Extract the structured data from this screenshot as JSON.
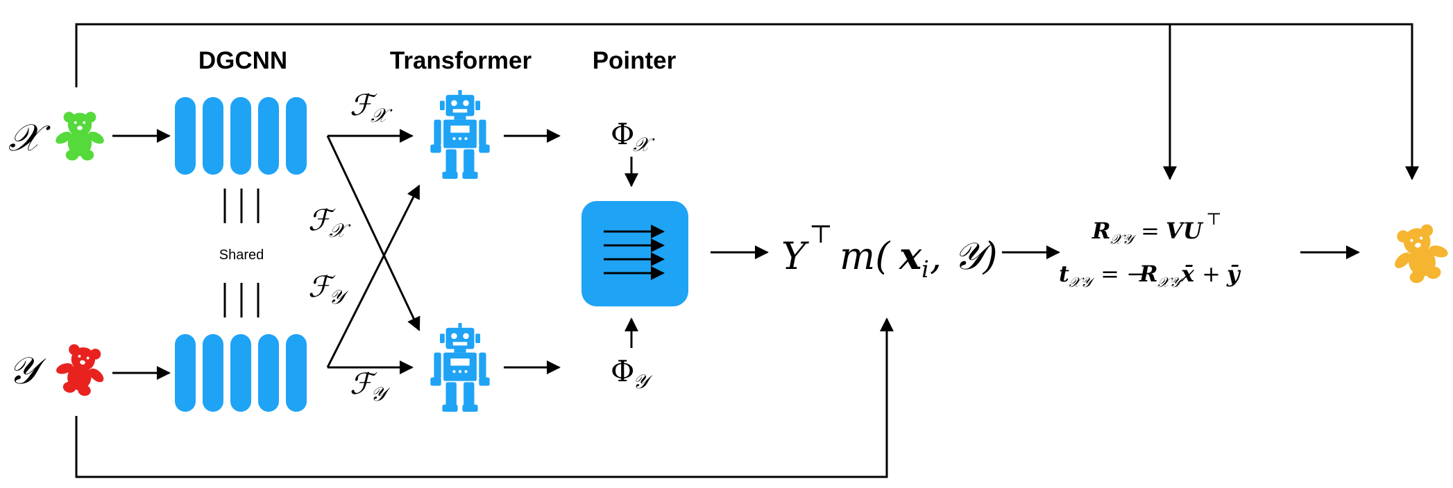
{
  "headers": {
    "dgcnn": "DGCNN",
    "transformer": "Transformer",
    "pointer": "Pointer"
  },
  "inputs": {
    "x_symbol": "𝒳",
    "y_symbol": "𝒴"
  },
  "shared_label": "Shared",
  "features": {
    "fx_top": "ℱ",
    "fx_top_sub": "𝒳",
    "fx_cross": "ℱ",
    "fx_cross_sub": "𝒳",
    "fy_cross": "ℱ",
    "fy_cross_sub": "𝒴",
    "fy_bottom": "ℱ",
    "fy_bottom_sub": "𝒴"
  },
  "embeddings": {
    "phi_x": "Φ",
    "phi_x_sub": "𝒳",
    "phi_y": "Φ",
    "phi_y_sub": "𝒴"
  },
  "soft_map": {
    "Y": "Y",
    "top": "⊤",
    "rest": "m(",
    "x": "x",
    "i": "i",
    "tail": ", 𝒴)"
  },
  "svd": {
    "line1_R": "R",
    "line1_sub": "𝒳𝒴",
    "line1_eq": " = ",
    "line1_VU": "VU",
    "line1_top": "⊤",
    "line2_t": "t",
    "line2_sub": "𝒳𝒴",
    "line2_eq": " = −",
    "line2_R": "R",
    "line2_sub2": "𝒳𝒴",
    "line2_x": "x̄",
    "line2_plus": " + ",
    "line2_y": "ȳ"
  },
  "colors": {
    "blue": "#1fa3f5",
    "green_bear": "#55d93b",
    "red_bear": "#e8221f",
    "orange_bear": "#f5b531",
    "stroke": "#000000"
  },
  "icons": {
    "bear_x": "teddy-bear-icon",
    "bear_y": "teddy-bear-icon",
    "bear_out": "teddy-bear-icon",
    "robot_top": "robot-icon",
    "robot_bottom": "robot-icon",
    "pointer": "arrows-block-icon"
  }
}
